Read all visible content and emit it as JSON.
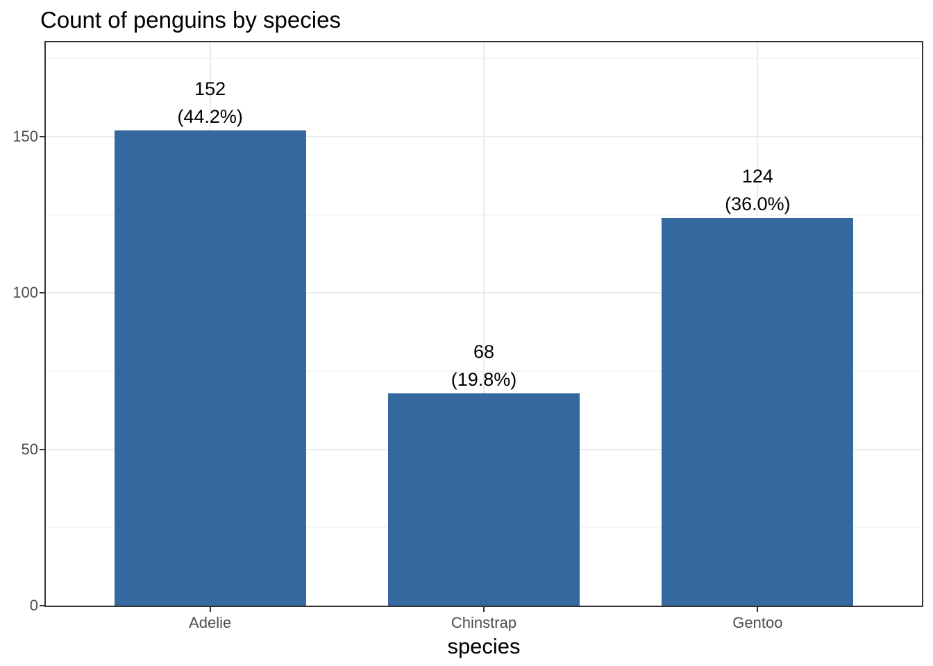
{
  "chart": {
    "title": "Count of penguins by species",
    "x_axis_title": "species"
  },
  "chart_data": {
    "type": "bar",
    "title": "Count of penguins by species",
    "categories": [
      "Adelie",
      "Chinstrap",
      "Gentoo"
    ],
    "values": [
      152,
      68,
      124
    ],
    "value_labels": [
      "152",
      "68",
      "124"
    ],
    "percent_labels": [
      "(44.2%)",
      "(19.8%)",
      "(36.0%)"
    ],
    "xlabel": "species",
    "ylabel": "",
    "y_ticks": [
      0,
      50,
      100,
      150
    ],
    "y_tick_labels": [
      "0",
      "50",
      "100",
      "150"
    ],
    "ylim": [
      0,
      180.2
    ],
    "legend": "none",
    "grid": {
      "horizontal_major": true,
      "horizontal_minor": true,
      "vertical_major_at_categories": true,
      "vertical_minor": false
    }
  },
  "colors": {
    "bar_fill": "#34689E",
    "panel_border": "#333333",
    "grid_major": "#EBEBEB",
    "grid_minor": "#EDEDED",
    "axis_text": "#4D4D4D",
    "title_text": "#000000",
    "background": "#FFFFFF"
  }
}
